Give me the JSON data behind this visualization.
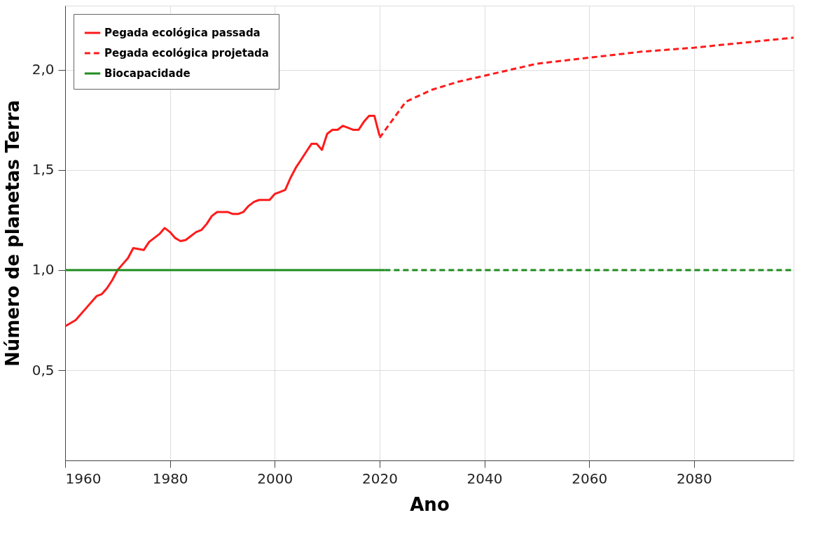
{
  "chart_data": {
    "type": "line",
    "xlabel": "Ano",
    "ylabel": "Número de planetas Terra",
    "xlim": [
      1960,
      2099
    ],
    "xticks": [
      1960,
      1980,
      2000,
      2020,
      2040,
      2060,
      2080
    ],
    "ylim": [
      0.05,
      2.32
    ],
    "yticks": [
      {
        "value": 0.5,
        "label": "0,5"
      },
      {
        "value": 1.0,
        "label": "1,0"
      },
      {
        "value": 1.5,
        "label": "1,5"
      },
      {
        "value": 2.0,
        "label": "2,0"
      }
    ],
    "grid": true,
    "legend": "top left",
    "marker": "none",
    "series": [
      {
        "name": "Pegada ecológica passada",
        "color": "#ff1a1a",
        "line_style": "solid",
        "x": [
          1960,
          1962,
          1964,
          1966,
          1967,
          1968,
          1969,
          1970,
          1971,
          1972,
          1973,
          1975,
          1976,
          1977,
          1978,
          1979,
          1980,
          1981,
          1982,
          1983,
          1984,
          1985,
          1986,
          1987,
          1988,
          1989,
          1990,
          1991,
          1992,
          1993,
          1994,
          1995,
          1996,
          1997,
          1998,
          1999,
          2000,
          2001,
          2002,
          2003,
          2004,
          2005,
          2006,
          2007,
          2008,
          2009,
          2010,
          2011,
          2012,
          2013,
          2014,
          2015,
          2016,
          2017,
          2018,
          2019,
          2020
        ],
        "values": [
          0.72,
          0.75,
          0.81,
          0.87,
          0.88,
          0.91,
          0.95,
          1.0,
          1.03,
          1.06,
          1.11,
          1.1,
          1.14,
          1.16,
          1.18,
          1.21,
          1.19,
          1.16,
          1.145,
          1.15,
          1.17,
          1.19,
          1.2,
          1.23,
          1.27,
          1.29,
          1.29,
          1.29,
          1.28,
          1.28,
          1.29,
          1.32,
          1.34,
          1.35,
          1.35,
          1.35,
          1.38,
          1.39,
          1.4,
          1.46,
          1.51,
          1.55,
          1.59,
          1.63,
          1.63,
          1.6,
          1.68,
          1.7,
          1.7,
          1.72,
          1.71,
          1.7,
          1.7,
          1.74,
          1.77,
          1.77,
          1.67
        ]
      },
      {
        "name": "Pegada ecológica projetada",
        "color": "#ff1a1a",
        "line_style": "dashed",
        "x": [
          2020,
          2025,
          2030,
          2035,
          2040,
          2045,
          2050,
          2060,
          2070,
          2080,
          2099
        ],
        "values": [
          1.66,
          1.84,
          1.9,
          1.94,
          1.97,
          2.0,
          2.03,
          2.06,
          2.09,
          2.11,
          2.16
        ]
      },
      {
        "name": "Biocapacidade",
        "color": "#1e8c1e",
        "line_style": "solid",
        "x": [
          1960,
          2021
        ],
        "values": [
          1.0,
          1.0
        ]
      },
      {
        "color": "#1e8c1e",
        "line_style": "dashed",
        "x": [
          2021,
          2099
        ],
        "values": [
          1.0,
          1.0
        ]
      }
    ]
  }
}
